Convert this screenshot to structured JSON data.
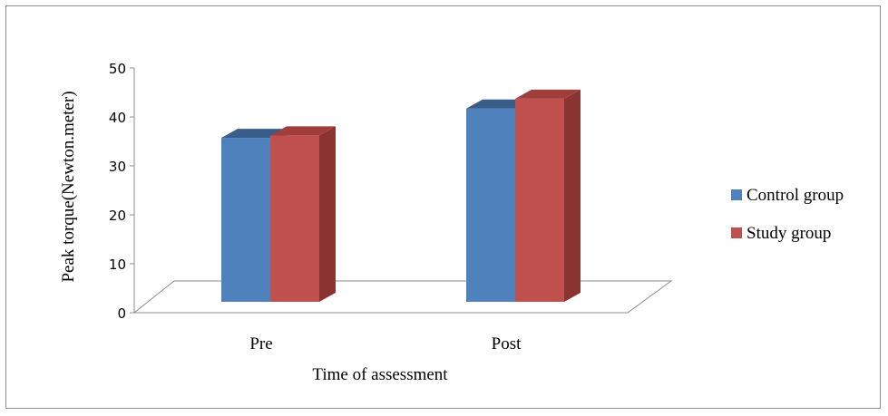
{
  "chart_data": {
    "type": "bar",
    "style": "3d-clustered-column",
    "categories": [
      "Pre",
      "Post"
    ],
    "series": [
      {
        "name": "Control group",
        "values": [
          33.5,
          39.5
        ],
        "color": "#4F81BD",
        "top_color": "#385D8A",
        "side_color": "#2E4F78"
      },
      {
        "name": "Study group",
        "values": [
          34,
          41.5
        ],
        "color": "#C0504D",
        "top_color": "#A03E3B",
        "side_color": "#8A3432"
      }
    ],
    "ylabel": "Peak torque(Newton.meter)",
    "xlabel": "Time of  assessment",
    "ylim": [
      0,
      50
    ],
    "yticks": [
      0,
      10,
      20,
      30,
      40,
      50
    ],
    "grid": false,
    "legend_position": "right"
  }
}
